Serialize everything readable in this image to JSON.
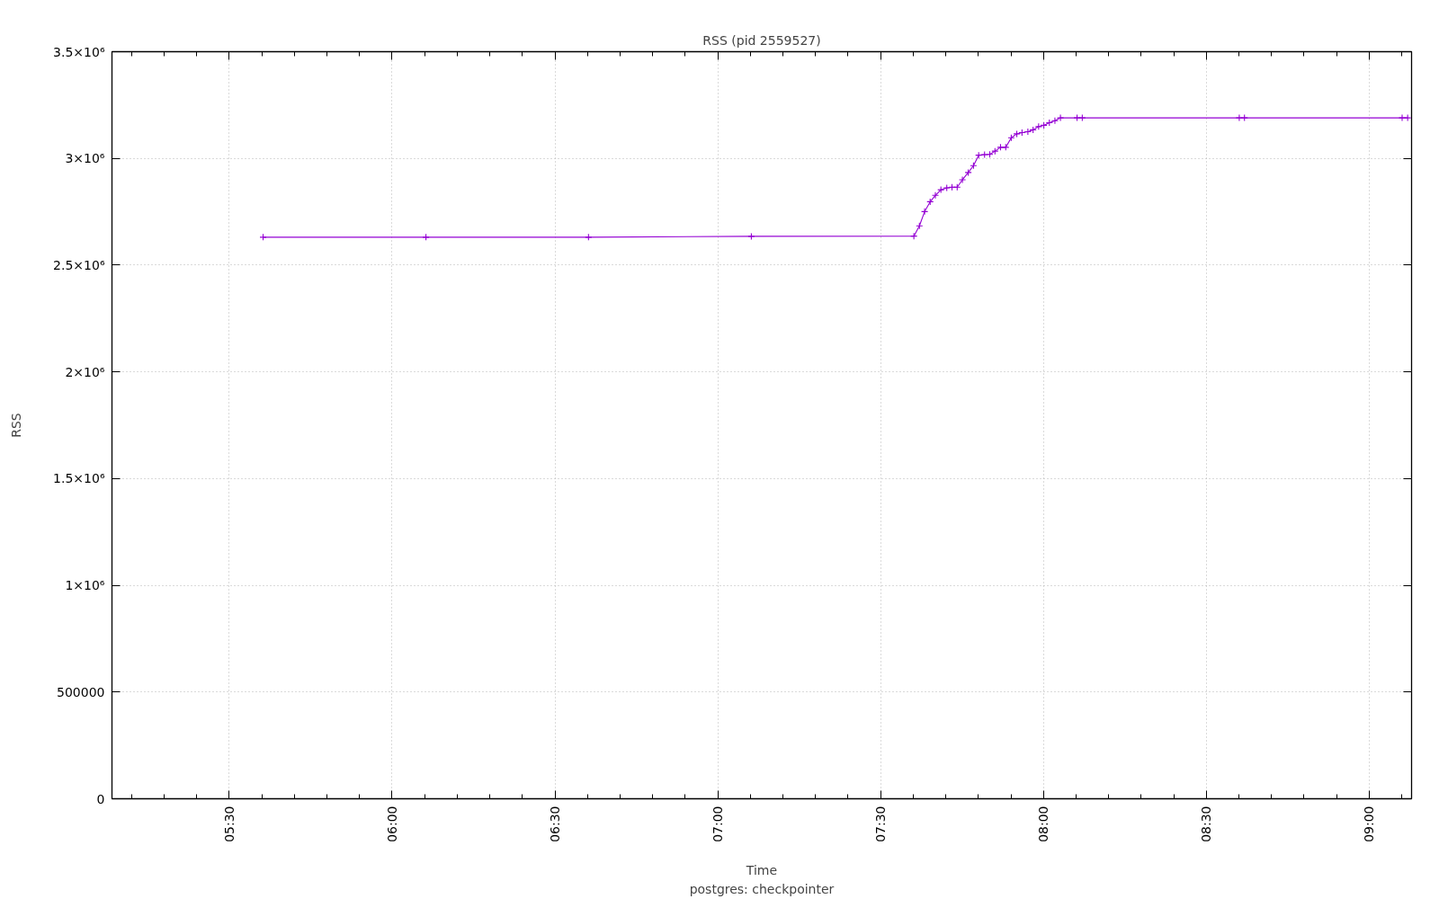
{
  "chart_data": {
    "type": "line",
    "title": "RSS (pid 2559527)",
    "xlabel": "Time",
    "ylabel": "RSS",
    "annotations": [
      "postgres: checkpointer"
    ],
    "x": [
      5.604,
      6.104,
      6.603,
      7.103,
      7.602,
      7.619,
      7.635,
      7.652,
      7.668,
      7.685,
      7.703,
      7.719,
      7.735,
      7.751,
      7.769,
      7.785,
      7.801,
      7.819,
      7.835,
      7.851,
      7.868,
      7.884,
      7.901,
      7.918,
      7.934,
      7.952,
      7.968,
      7.985,
      8.001,
      8.018,
      8.035,
      8.052,
      8.103,
      8.119,
      8.601,
      8.617,
      9.101,
      9.118
    ],
    "series": [
      {
        "color": "#9400d3",
        "values": [
          2631000,
          2631000,
          2631000,
          2635000,
          2636000,
          2684000,
          2751000,
          2797000,
          2827000,
          2853000,
          2862000,
          2865000,
          2865000,
          2900000,
          2934000,
          2966000,
          3015000,
          3018000,
          3019000,
          3034000,
          3052000,
          3052000,
          3097000,
          3115000,
          3121000,
          3125000,
          3134000,
          3149000,
          3155000,
          3167000,
          3177000,
          3190000,
          3190000,
          3190000,
          3190000,
          3190000,
          3190000,
          3190000
        ]
      }
    ],
    "xlim": [
      5.14,
      9.13
    ],
    "xticks": [
      {
        "value": 5.5,
        "label": "05:30"
      },
      {
        "value": 6.0,
        "label": "06:00"
      },
      {
        "value": 6.5,
        "label": "06:30"
      },
      {
        "value": 7.0,
        "label": "07:00"
      },
      {
        "value": 7.5,
        "label": "07:30"
      },
      {
        "value": 8.0,
        "label": "08:00"
      },
      {
        "value": 8.5,
        "label": "08:30"
      },
      {
        "value": 9.0,
        "label": "09:00"
      }
    ],
    "ylim": [
      0,
      3500000
    ],
    "yticks": [
      0,
      500000,
      {
        "value": 1000000,
        "label": "1×10⁶"
      },
      {
        "value": 1500000,
        "label": "1.5×10⁶"
      },
      {
        "value": 2000000,
        "label": "2×10⁶"
      },
      {
        "value": 2500000,
        "label": "2.5×10⁶"
      },
      {
        "value": 3000000,
        "label": "3×10⁶"
      },
      {
        "value": 3500000,
        "label": "3.5×10⁶"
      }
    ],
    "grid": true,
    "marker": "cross",
    "line_style": "solid"
  }
}
